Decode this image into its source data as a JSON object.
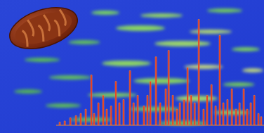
{
  "chart_data": {
    "type": "bar",
    "x": [
      1.7,
      4.1,
      6.8,
      9.5,
      11.8,
      14.2,
      16.9,
      18.2,
      20.3,
      22.6,
      24.3,
      26.4,
      28.7,
      30.4,
      32.4,
      35.5,
      37.2,
      39.2,
      42.2,
      43.9,
      45.3,
      48.0,
      50.0,
      52.7,
      54.1,
      56.1,
      58.1,
      59.5,
      61.5,
      63.2,
      64.9,
      66.6,
      68.6,
      70.9,
      72.6,
      74.7,
      76.7,
      78.7,
      80.4,
      82.4,
      84.5,
      86.5,
      88.2,
      90.2,
      91.9,
      93.6,
      95.3,
      97.3,
      98.6
    ],
    "values": [
      3,
      4,
      7,
      9,
      11,
      15,
      47,
      11,
      21,
      28,
      15,
      18,
      41,
      21,
      24,
      51,
      21,
      28,
      18,
      28,
      41,
      64,
      21,
      34,
      70,
      28,
      15,
      21,
      24,
      54,
      28,
      21,
      99,
      15,
      28,
      38,
      18,
      84,
      21,
      24,
      34,
      15,
      21,
      34,
      15,
      21,
      28,
      11,
      8
    ],
    "color": "#e8261a",
    "xlim": [
      0,
      100
    ],
    "ylim": [
      0,
      100
    ],
    "tick_labels": false
  }
}
